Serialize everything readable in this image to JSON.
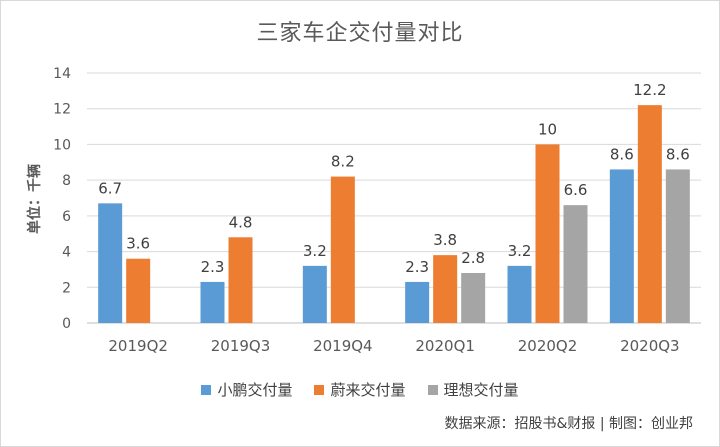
{
  "chart_data": {
    "type": "bar",
    "title": "三家车企交付量对比",
    "ylabel": "单位：千辆",
    "xlabel": "",
    "ylim": [
      0,
      14
    ],
    "yticks": [
      "0",
      "2",
      "4",
      "6",
      "8",
      "10",
      "12",
      "14"
    ],
    "grid": true,
    "legend_position": "bottom",
    "categories": [
      "2019Q2",
      "2019Q3",
      "2019Q4",
      "2020Q1",
      "2020Q2",
      "2020Q3"
    ],
    "series": [
      {
        "name": "小鹏交付量",
        "color": "#5b9bd5",
        "values": [
          6.7,
          2.3,
          3.2,
          2.3,
          3.2,
          8.6
        ],
        "labels": [
          "6.7",
          "2.3",
          "3.2",
          "2.3",
          "3.2",
          "8.6"
        ]
      },
      {
        "name": "蔚来交付量",
        "color": "#ed7d31",
        "values": [
          3.6,
          4.8,
          8.2,
          3.8,
          10,
          12.2
        ],
        "labels": [
          "3.6",
          "4.8",
          "8.2",
          "3.8",
          "10",
          "12.2"
        ]
      },
      {
        "name": "理想交付量",
        "color": "#a5a5a5",
        "values": [
          null,
          null,
          null,
          2.8,
          6.6,
          8.6
        ],
        "labels": [
          null,
          null,
          null,
          "2.8",
          "6.6",
          "8.6"
        ]
      }
    ]
  },
  "source_note": "数据来源：招股书&财报 | 制图：创业邦"
}
